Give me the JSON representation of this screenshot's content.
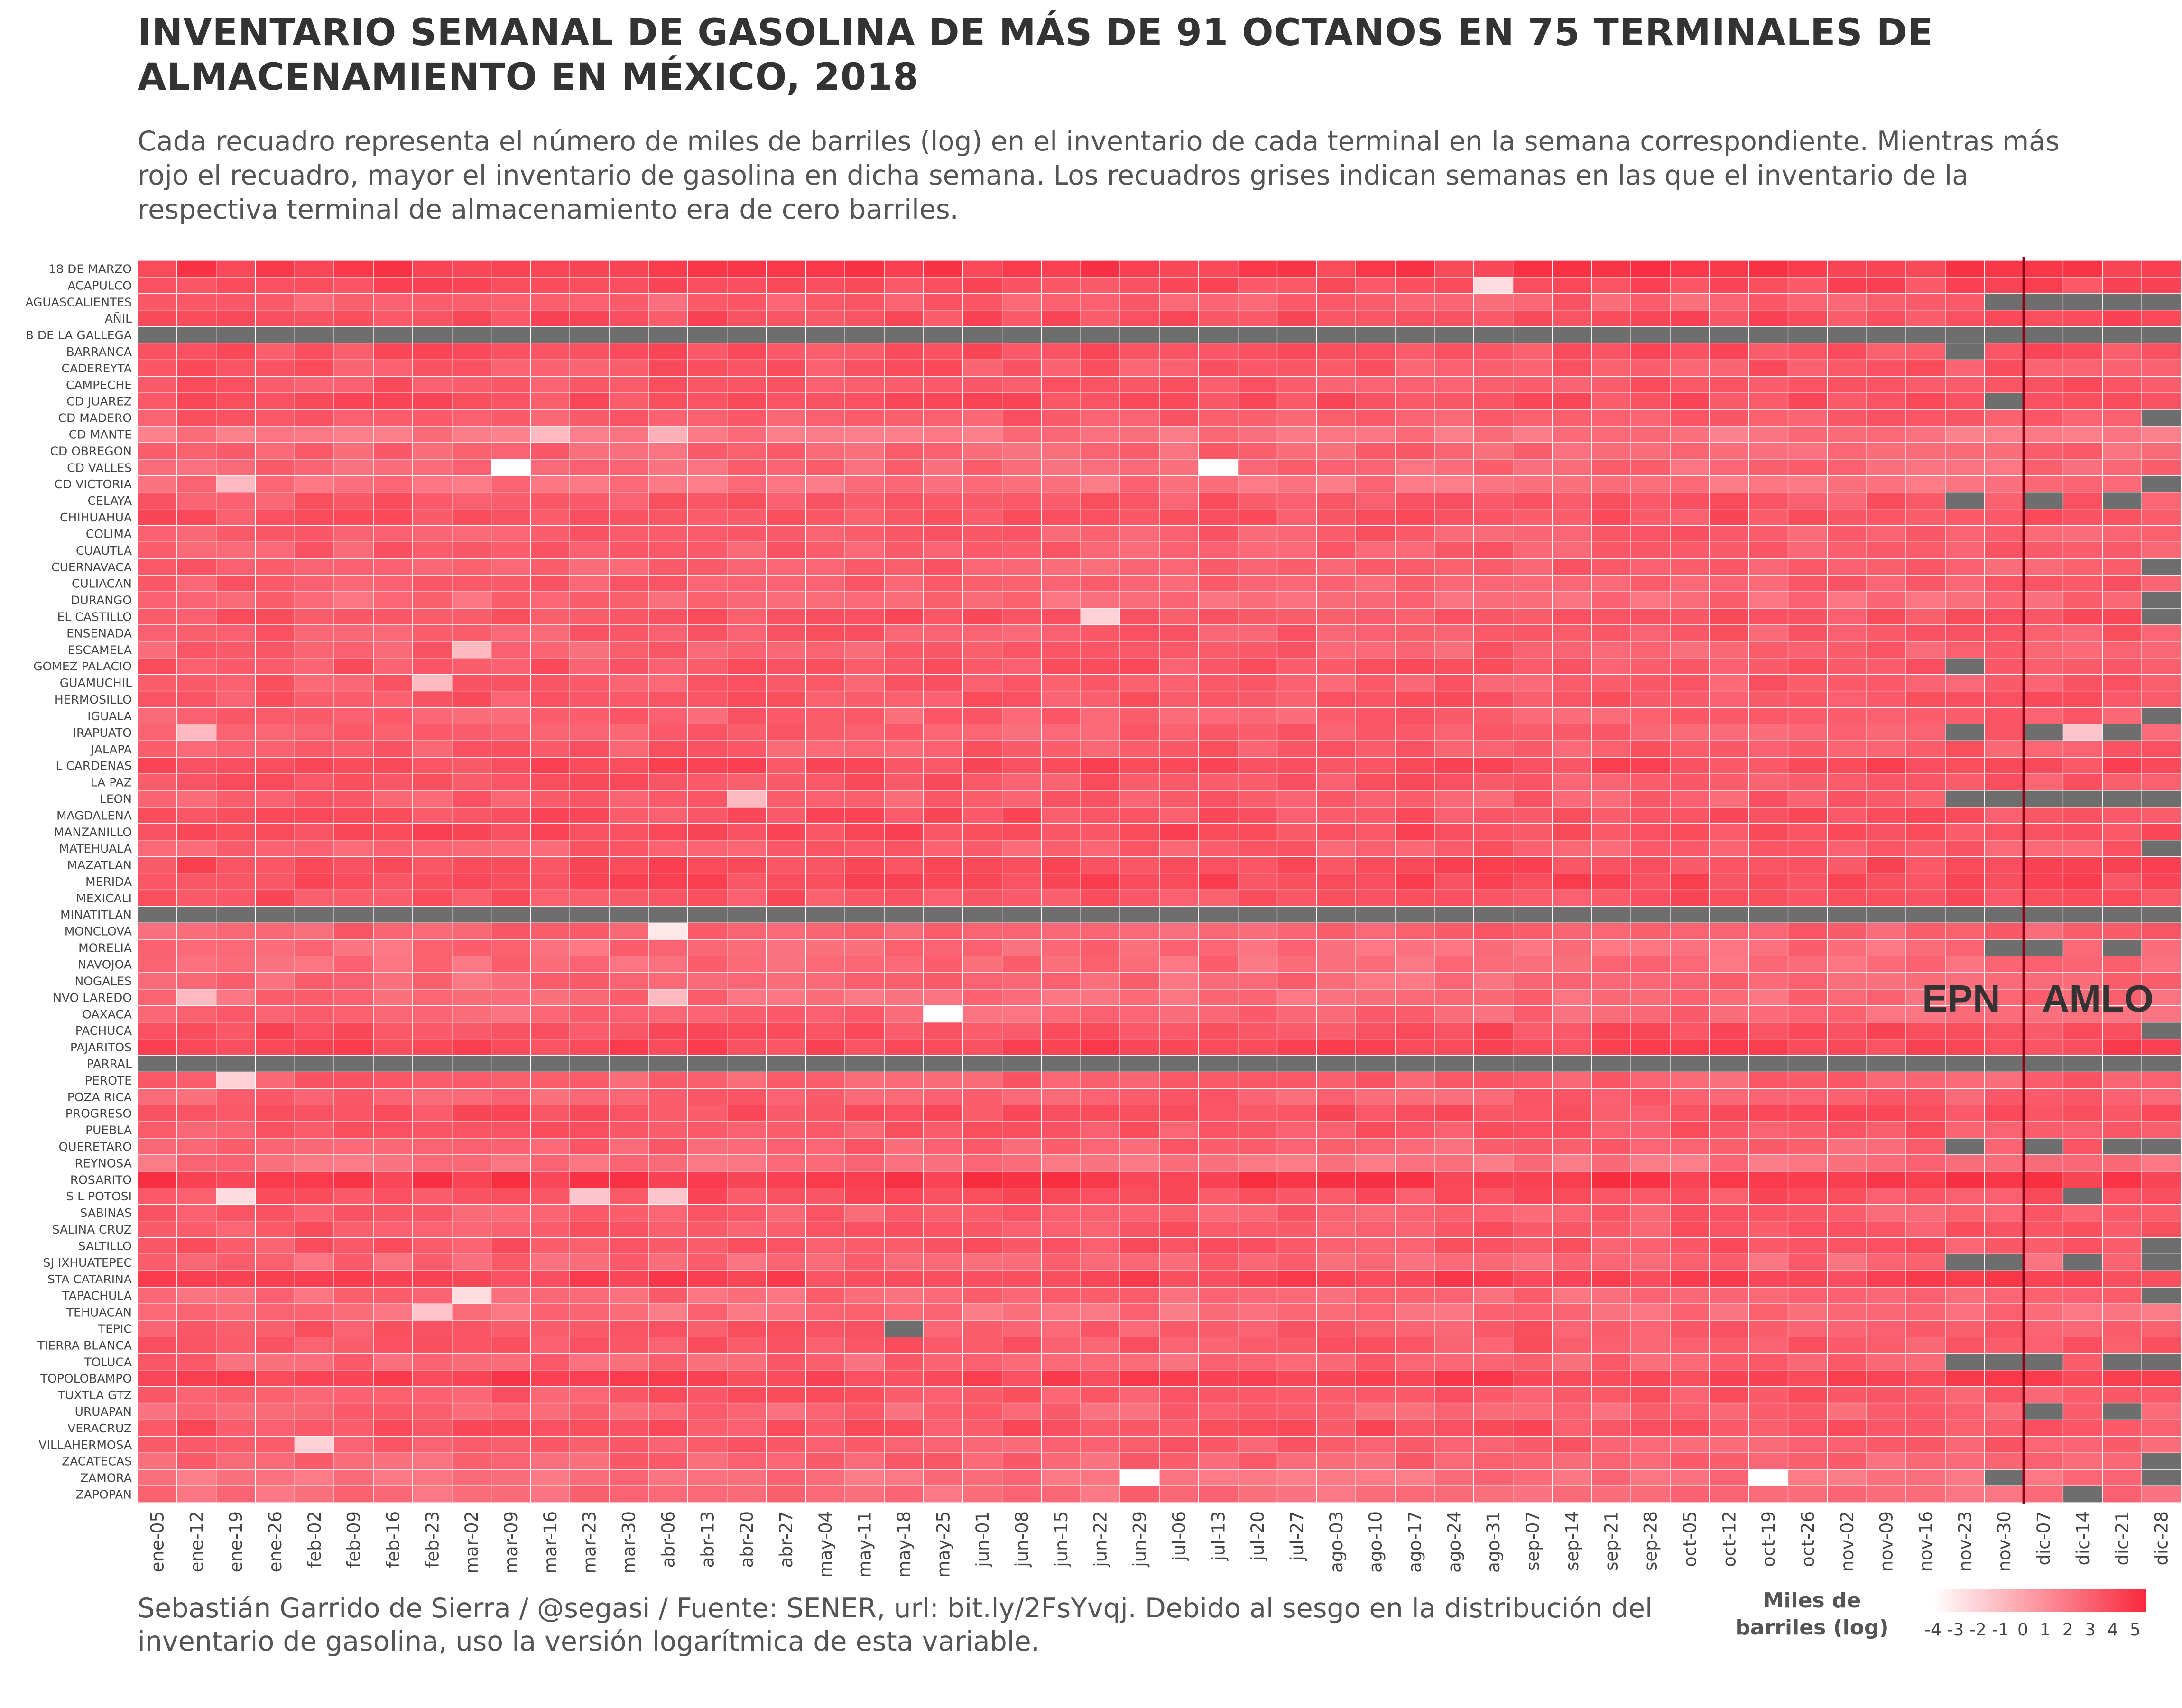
{
  "header": {
    "title": "INVENTARIO SEMANAL DE GASOLINA DE MÁS DE 91 OCTANOS EN 75 TERMINALES DE ALMACENAMIENTO EN MÉXICO, 2018",
    "subtitle": "Cada recuadro representa el número de miles de barriles (log) en el inventario de cada terminal en la semana correspondiente. Mientras más rojo el recuadro, mayor el inventario de gasolina en dicha semana. Los recuadros grises indican semanas en las que el inventario de la respectiva terminal de almacenamiento era de cero barriles."
  },
  "caption": "Sebastián Garrido de Sierra / @segasi / Fuente: SENER, url: bit.ly/2FsYvqj. Debido al sesgo en la distribución del inventario de gasolina, uso la versión logarítmica de esta variable.",
  "colors": {
    "low": "#ffffff",
    "high": "#f8283c",
    "zero_inventory": "#6e6e6e",
    "divider_line": "#8b0014"
  },
  "chart_data": {
    "type": "heatmap",
    "x_weeks": [
      "ene-05",
      "ene-12",
      "ene-19",
      "ene-26",
      "feb-02",
      "feb-09",
      "feb-16",
      "feb-23",
      "mar-02",
      "mar-09",
      "mar-16",
      "mar-23",
      "mar-30",
      "abr-06",
      "abr-13",
      "abr-20",
      "abr-27",
      "may-04",
      "may-11",
      "may-18",
      "may-25",
      "jun-01",
      "jun-08",
      "jun-15",
      "jun-22",
      "jun-29",
      "jul-06",
      "jul-13",
      "jul-20",
      "jul-27",
      "ago-03",
      "ago-10",
      "ago-17",
      "ago-24",
      "ago-31",
      "sep-07",
      "sep-14",
      "sep-21",
      "sep-28",
      "oct-05",
      "oct-12",
      "oct-19",
      "oct-26",
      "nov-02",
      "nov-09",
      "nov-16",
      "nov-23",
      "nov-30",
      "dic-07",
      "dic-14",
      "dic-21",
      "dic-28"
    ],
    "y_terminals": [
      "18 DE MARZO",
      "ACAPULCO",
      "AGUASCALIENTES",
      "AÑIL",
      "B DE LA GALLEGA",
      "BARRANCA",
      "CADEREYTA",
      "CAMPECHE",
      "CD JUAREZ",
      "CD MADERO",
      "CD MANTE",
      "CD OBREGON",
      "CD VALLES",
      "CD VICTORIA",
      "CELAYA",
      "CHIHUAHUA",
      "COLIMA",
      "CUAUTLA",
      "CUERNAVACA",
      "CULIACAN",
      "DURANGO",
      "EL CASTILLO",
      "ENSENADA",
      "ESCAMELA",
      "GOMEZ PALACIO",
      "GUAMUCHIL",
      "HERMOSILLO",
      "IGUALA",
      "IRAPUATO",
      "JALAPA",
      "L CARDENAS",
      "LA PAZ",
      "LEON",
      "MAGDALENA",
      "MANZANILLO",
      "MATEHUALA",
      "MAZATLAN",
      "MERIDA",
      "MEXICALI",
      "MINATITLAN",
      "MONCLOVA",
      "MORELIA",
      "NAVOJOA",
      "NOGALES",
      "NVO LAREDO",
      "OAXACA",
      "PACHUCA",
      "PAJARITOS",
      "PARRAL",
      "PEROTE",
      "POZA RICA",
      "PROGRESO",
      "PUEBLA",
      "QUERETARO",
      "REYNOSA",
      "ROSARITO",
      "S L POTOSI",
      "SABINAS",
      "SALINA CRUZ",
      "SALTILLO",
      "SJ IXHUATEPEC",
      "STA CATARINA",
      "TAPACHULA",
      "TEHUACAN",
      "TEPIC",
      "TIERRA BLANCA",
      "TOLUCA",
      "TOPOLOBAMPO",
      "TUXTLA GTZ",
      "URUAPAN",
      "VERACRUZ",
      "VILLAHERMOSA",
      "ZACATECAS",
      "ZAMORA",
      "ZAPOPAN"
    ],
    "terminal_base_log": [
      4.6,
      3.9,
      3.0,
      3.7,
      null,
      3.6,
      3.4,
      3.4,
      3.7,
      3.2,
      2.1,
      2.8,
      2.6,
      2.3,
      3.3,
      3.6,
      3.1,
      3.1,
      3.0,
      3.1,
      2.6,
      3.5,
      3.2,
      3.0,
      3.4,
      3.2,
      3.4,
      3.0,
      3.0,
      3.2,
      3.9,
      3.4,
      3.1,
      3.6,
      3.8,
      3.1,
      3.9,
      4.0,
      3.6,
      null,
      2.9,
      2.5,
      2.5,
      2.6,
      2.6,
      2.7,
      3.7,
      4.1,
      null,
      3.0,
      2.9,
      3.6,
      3.3,
      2.9,
      2.3,
      4.7,
      3.6,
      3.1,
      3.3,
      3.4,
      2.7,
      4.2,
      2.6,
      2.4,
      3.2,
      3.3,
      2.8,
      4.3,
      3.3,
      2.8,
      3.6,
      3.0,
      2.8,
      2.3,
      2.5
    ],
    "zero_inventory_cells": [
      [
        2,
        47
      ],
      [
        2,
        48
      ],
      [
        2,
        49
      ],
      [
        2,
        50
      ],
      [
        2,
        51
      ],
      [
        4,
        "all"
      ],
      [
        5,
        46
      ],
      [
        8,
        47
      ],
      [
        9,
        51
      ],
      [
        13,
        51
      ],
      [
        14,
        46
      ],
      [
        14,
        48
      ],
      [
        14,
        50
      ],
      [
        18,
        51
      ],
      [
        20,
        51
      ],
      [
        21,
        51
      ],
      [
        24,
        46
      ],
      [
        27,
        51
      ],
      [
        28,
        46
      ],
      [
        28,
        48
      ],
      [
        28,
        50
      ],
      [
        32,
        46
      ],
      [
        32,
        47
      ],
      [
        32,
        48
      ],
      [
        32,
        49
      ],
      [
        32,
        50
      ],
      [
        32,
        51
      ],
      [
        35,
        51
      ],
      [
        39,
        "all"
      ],
      [
        41,
        47
      ],
      [
        41,
        48
      ],
      [
        41,
        50
      ],
      [
        46,
        51
      ],
      [
        48,
        "all"
      ],
      [
        53,
        46
      ],
      [
        53,
        48
      ],
      [
        53,
        50
      ],
      [
        53,
        51
      ],
      [
        56,
        49
      ],
      [
        59,
        51
      ],
      [
        60,
        46
      ],
      [
        60,
        47
      ],
      [
        60,
        49
      ],
      [
        60,
        51
      ],
      [
        62,
        51
      ],
      [
        64,
        19
      ],
      [
        66,
        46
      ],
      [
        66,
        47
      ],
      [
        66,
        48
      ],
      [
        66,
        50
      ],
      [
        66,
        51
      ],
      [
        69,
        48
      ],
      [
        69,
        50
      ],
      [
        72,
        51
      ],
      [
        73,
        47
      ],
      [
        73,
        51
      ],
      [
        74,
        49
      ]
    ],
    "low_inventory_cells": [
      [
        1,
        34,
        -2.5
      ],
      [
        10,
        10,
        -1.0
      ],
      [
        10,
        13,
        -0.5
      ],
      [
        12,
        9,
        -4.0
      ],
      [
        12,
        27,
        -4.0
      ],
      [
        13,
        2,
        -1.0
      ],
      [
        21,
        24,
        -2.0
      ],
      [
        23,
        8,
        -1.0
      ],
      [
        25,
        7,
        -1.0
      ],
      [
        28,
        1,
        -1.0
      ],
      [
        28,
        49,
        -1.5
      ],
      [
        32,
        15,
        -1.0
      ],
      [
        40,
        13,
        -3.0
      ],
      [
        44,
        1,
        -1.0
      ],
      [
        44,
        13,
        -1.0
      ],
      [
        45,
        20,
        -4.0
      ],
      [
        49,
        2,
        -2.0
      ],
      [
        56,
        2,
        -2.5
      ],
      [
        56,
        11,
        -1.5
      ],
      [
        56,
        13,
        -1.5
      ],
      [
        62,
        8,
        -2.5
      ],
      [
        63,
        7,
        -1.5
      ],
      [
        73,
        25,
        -4.0
      ],
      [
        73,
        41,
        -4.0
      ],
      [
        71,
        4,
        -2.0
      ]
    ],
    "color_scale": {
      "min": -4,
      "max": 5.5
    },
    "legend": {
      "title_line1": "Miles de",
      "title_line2": "barriles (log)",
      "ticks": [
        "-4",
        "-3",
        "-2",
        "-1",
        "0",
        "1",
        "2",
        "3",
        "4",
        "5"
      ]
    },
    "period_divider_after_week": "nov-30",
    "annotations": {
      "left": "EPN",
      "right": "AMLO"
    }
  }
}
